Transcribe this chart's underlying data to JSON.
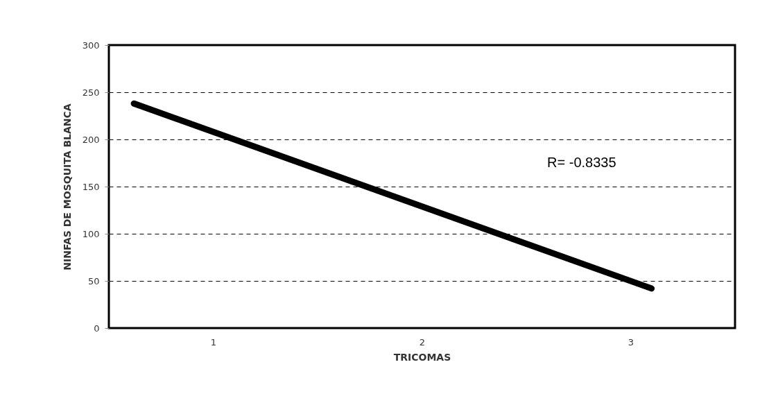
{
  "chart_data": {
    "type": "line",
    "xlabel": "TRICOMAS",
    "ylabel": "NINFAS DE MOSQUITA  BLANCA",
    "x": [
      0.62,
      3.1
    ],
    "series": [
      {
        "color": "#000000",
        "values": [
          238,
          42
        ]
      }
    ],
    "xlim": [
      0.5,
      3.5
    ],
    "xticks": [
      1,
      2,
      3
    ],
    "ylim": [
      0,
      300
    ],
    "yticks": [
      0,
      50,
      100,
      150,
      200,
      250,
      300
    ],
    "grid": "y",
    "legend": false,
    "line_style": "solid",
    "annotations": [
      "R= -0.8335"
    ]
  }
}
